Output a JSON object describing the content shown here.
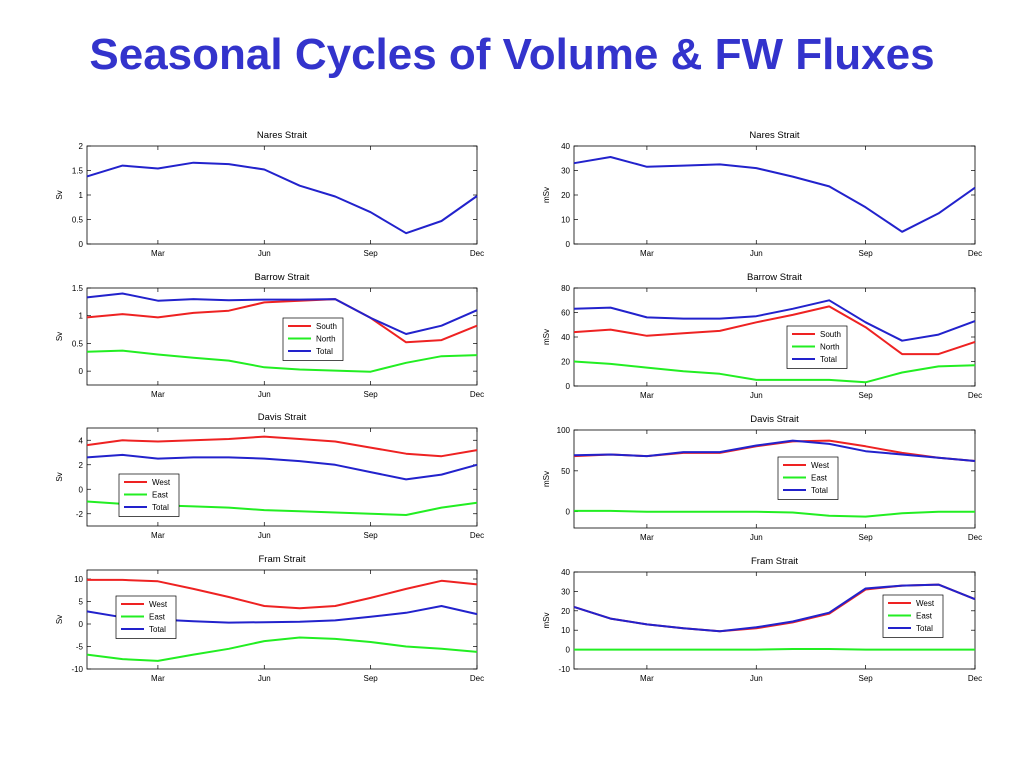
{
  "slide": {
    "title": "Seasonal Cycles of Volume & FW Fluxes"
  },
  "colors": {
    "title": "#3333cc",
    "red": "#ee2222",
    "green": "#22ee22",
    "blue": "#2222cc"
  },
  "chart_data": [
    {
      "type": "line",
      "title": "Nares Strait",
      "ylabel": "Sv",
      "x": [
        1,
        2,
        3,
        4,
        5,
        6,
        7,
        8,
        9,
        10,
        11,
        12
      ],
      "xticks": [
        "Mar",
        "Jun",
        "Sep",
        "Dec"
      ],
      "xtick_months": [
        3,
        6,
        9,
        12
      ],
      "ylim": [
        0,
        2
      ],
      "yticks": [
        0,
        0.5,
        1,
        1.5,
        2
      ],
      "ytick_labels": [
        "0",
        "0.5",
        "1",
        "1.5",
        "2"
      ],
      "legend": null,
      "series": [
        {
          "color": "blue",
          "values": [
            1.38,
            1.6,
            1.54,
            1.66,
            1.63,
            1.52,
            1.19,
            0.97,
            0.65,
            0.22,
            0.47,
            0.98
          ]
        }
      ]
    },
    {
      "type": "line",
      "title": "Nares Strait",
      "ylabel": "mSv",
      "x": [
        1,
        2,
        3,
        4,
        5,
        6,
        7,
        8,
        9,
        10,
        11,
        12
      ],
      "xticks": [
        "Mar",
        "Jun",
        "Sep",
        "Dec"
      ],
      "xtick_months": [
        3,
        6,
        9,
        12
      ],
      "ylim": [
        0,
        40
      ],
      "yticks": [
        0,
        10,
        20,
        30,
        40
      ],
      "ytick_labels": [
        "0",
        "10",
        "20",
        "30",
        "40"
      ],
      "legend": null,
      "series": [
        {
          "color": "blue",
          "values": [
            33,
            35.5,
            31.5,
            32,
            32.5,
            31,
            27.5,
            23.5,
            15,
            5,
            12.5,
            23
          ]
        }
      ]
    },
    {
      "type": "line",
      "title": "Barrow Strait",
      "ylabel": "Sv",
      "x": [
        1,
        2,
        3,
        4,
        5,
        6,
        7,
        8,
        9,
        10,
        11,
        12
      ],
      "xticks": [
        "Mar",
        "Jun",
        "Sep",
        "Dec"
      ],
      "xtick_months": [
        3,
        6,
        9,
        12
      ],
      "ylim": [
        -0.25,
        1.5
      ],
      "yticks": [
        0,
        0.5,
        1,
        1.5
      ],
      "ytick_labels": [
        "0",
        "0.5",
        "1",
        "1.5"
      ],
      "legend": "center-right",
      "series": [
        {
          "name": "South",
          "color": "red",
          "values": [
            0.97,
            1.03,
            0.97,
            1.05,
            1.09,
            1.24,
            1.27,
            1.3,
            0.96,
            0.52,
            0.56,
            0.82
          ]
        },
        {
          "name": "North",
          "color": "green",
          "values": [
            0.35,
            0.37,
            0.3,
            0.24,
            0.19,
            0.07,
            0.03,
            0.01,
            -0.01,
            0.15,
            0.27,
            0.29
          ]
        },
        {
          "name": "Total",
          "color": "blue",
          "values": [
            1.33,
            1.4,
            1.27,
            1.3,
            1.28,
            1.29,
            1.29,
            1.3,
            0.96,
            0.67,
            0.82,
            1.1
          ]
        }
      ]
    },
    {
      "type": "line",
      "title": "Barrow Strait",
      "ylabel": "mSv",
      "x": [
        1,
        2,
        3,
        4,
        5,
        6,
        7,
        8,
        9,
        10,
        11,
        12
      ],
      "xticks": [
        "Mar",
        "Jun",
        "Sep",
        "Dec"
      ],
      "xtick_months": [
        3,
        6,
        9,
        12
      ],
      "ylim": [
        0,
        80
      ],
      "yticks": [
        0,
        20,
        40,
        60,
        80
      ],
      "ytick_labels": [
        "0",
        "20",
        "40",
        "60",
        "80"
      ],
      "legend": "center-right",
      "series": [
        {
          "name": "South",
          "color": "red",
          "values": [
            44,
            46,
            41,
            43,
            45,
            52,
            58,
            65,
            48,
            26,
            26,
            36
          ]
        },
        {
          "name": "North",
          "color": "green",
          "values": [
            20,
            18,
            15,
            12,
            10,
            5,
            5,
            5,
            3,
            11,
            16,
            17
          ]
        },
        {
          "name": "Total",
          "color": "blue",
          "values": [
            63,
            64,
            56,
            55,
            55,
            57,
            63,
            70,
            52,
            37,
            42,
            53
          ]
        }
      ]
    },
    {
      "type": "line",
      "title": "Davis Strait",
      "ylabel": "Sv",
      "x": [
        1,
        2,
        3,
        4,
        5,
        6,
        7,
        8,
        9,
        10,
        11,
        12
      ],
      "xticks": [
        "Mar",
        "Jun",
        "Sep",
        "Dec"
      ],
      "xtick_months": [
        3,
        6,
        9,
        12
      ],
      "ylim": [
        -3,
        5
      ],
      "yticks": [
        -2,
        0,
        2,
        4
      ],
      "ytick_labels": [
        "-2",
        "0",
        "2",
        "4"
      ],
      "legend": "bottom-left",
      "series": [
        {
          "name": "West",
          "color": "red",
          "values": [
            3.6,
            4.0,
            3.9,
            4.0,
            4.1,
            4.3,
            4.1,
            3.9,
            3.4,
            2.9,
            2.7,
            3.2
          ]
        },
        {
          "name": "East",
          "color": "green",
          "values": [
            -1.0,
            -1.2,
            -1.3,
            -1.4,
            -1.5,
            -1.7,
            -1.8,
            -1.9,
            -2.0,
            -2.1,
            -1.5,
            -1.1
          ]
        },
        {
          "name": "Total",
          "color": "blue",
          "values": [
            2.6,
            2.8,
            2.5,
            2.6,
            2.6,
            2.5,
            2.3,
            2.0,
            1.4,
            0.8,
            1.2,
            2.0
          ]
        }
      ]
    },
    {
      "type": "line",
      "title": "Davis Strait",
      "ylabel": "mSv",
      "x": [
        1,
        2,
        3,
        4,
        5,
        6,
        7,
        8,
        9,
        10,
        11,
        12
      ],
      "xticks": [
        "Mar",
        "Jun",
        "Sep",
        "Dec"
      ],
      "xtick_months": [
        3,
        6,
        9,
        12
      ],
      "ylim": [
        -20,
        100
      ],
      "yticks": [
        0,
        50,
        100
      ],
      "ytick_labels": [
        "0",
        "50",
        "100"
      ],
      "legend": "bottom-center",
      "series": [
        {
          "name": "West",
          "color": "red",
          "values": [
            68,
            70,
            68,
            72,
            72,
            80,
            86,
            87,
            80,
            72,
            66,
            62
          ]
        },
        {
          "name": "East",
          "color": "green",
          "values": [
            1,
            1,
            0,
            0,
            0,
            0,
            -1,
            -5,
            -6,
            -2,
            0,
            0
          ]
        },
        {
          "name": "Total",
          "color": "blue",
          "values": [
            69,
            70,
            68,
            73,
            73,
            81,
            87,
            83,
            74,
            70,
            66,
            62
          ]
        }
      ]
    },
    {
      "type": "line",
      "title": "Fram Strait",
      "ylabel": "Sv",
      "x": [
        1,
        2,
        3,
        4,
        5,
        6,
        7,
        8,
        9,
        10,
        11,
        12
      ],
      "xticks": [
        "Mar",
        "Jun",
        "Sep",
        "Dec"
      ],
      "xtick_months": [
        3,
        6,
        9,
        12
      ],
      "ylim": [
        -10,
        12
      ],
      "yticks": [
        -10,
        -5,
        0,
        5,
        10
      ],
      "ytick_labels": [
        "-10",
        "-5",
        "0",
        "5",
        "10"
      ],
      "legend": "center-left",
      "series": [
        {
          "name": "West",
          "color": "red",
          "values": [
            9.8,
            9.8,
            9.5,
            7.8,
            6.0,
            4.0,
            3.5,
            4.0,
            5.8,
            7.8,
            9.6,
            8.8
          ]
        },
        {
          "name": "East",
          "color": "green",
          "values": [
            -6.8,
            -7.8,
            -8.2,
            -6.8,
            -5.5,
            -3.8,
            -3.0,
            -3.3,
            -4.0,
            -5.0,
            -5.5,
            -6.2
          ]
        },
        {
          "name": "Total",
          "color": "blue",
          "values": [
            2.8,
            1.5,
            1.0,
            0.6,
            0.3,
            0.4,
            0.5,
            0.8,
            1.6,
            2.5,
            4.0,
            2.2
          ]
        }
      ]
    },
    {
      "type": "line",
      "title": "Fram Strait",
      "ylabel": "mSv",
      "x": [
        1,
        2,
        3,
        4,
        5,
        6,
        7,
        8,
        9,
        10,
        11,
        12
      ],
      "xticks": [
        "Mar",
        "Jun",
        "Sep",
        "Dec"
      ],
      "xtick_months": [
        3,
        6,
        9,
        12
      ],
      "ylim": [
        -10,
        40
      ],
      "yticks": [
        -10,
        0,
        10,
        20,
        30,
        40
      ],
      "ytick_labels": [
        "-10",
        "0",
        "10",
        "20",
        "30",
        "40"
      ],
      "legend": "bottom-right",
      "series": [
        {
          "name": "West",
          "color": "red",
          "values": [
            22,
            16,
            13,
            11,
            9.5,
            11,
            14,
            18.5,
            31,
            33,
            33.5,
            26
          ]
        },
        {
          "name": "East",
          "color": "green",
          "values": [
            0,
            0,
            0,
            0,
            0,
            0,
            0.3,
            0.3,
            0,
            0,
            0,
            0
          ]
        },
        {
          "name": "Total",
          "color": "blue",
          "values": [
            22,
            16,
            13,
            11,
            9.5,
            11.5,
            14.5,
            19,
            31.5,
            33,
            33.5,
            26
          ]
        }
      ]
    }
  ]
}
